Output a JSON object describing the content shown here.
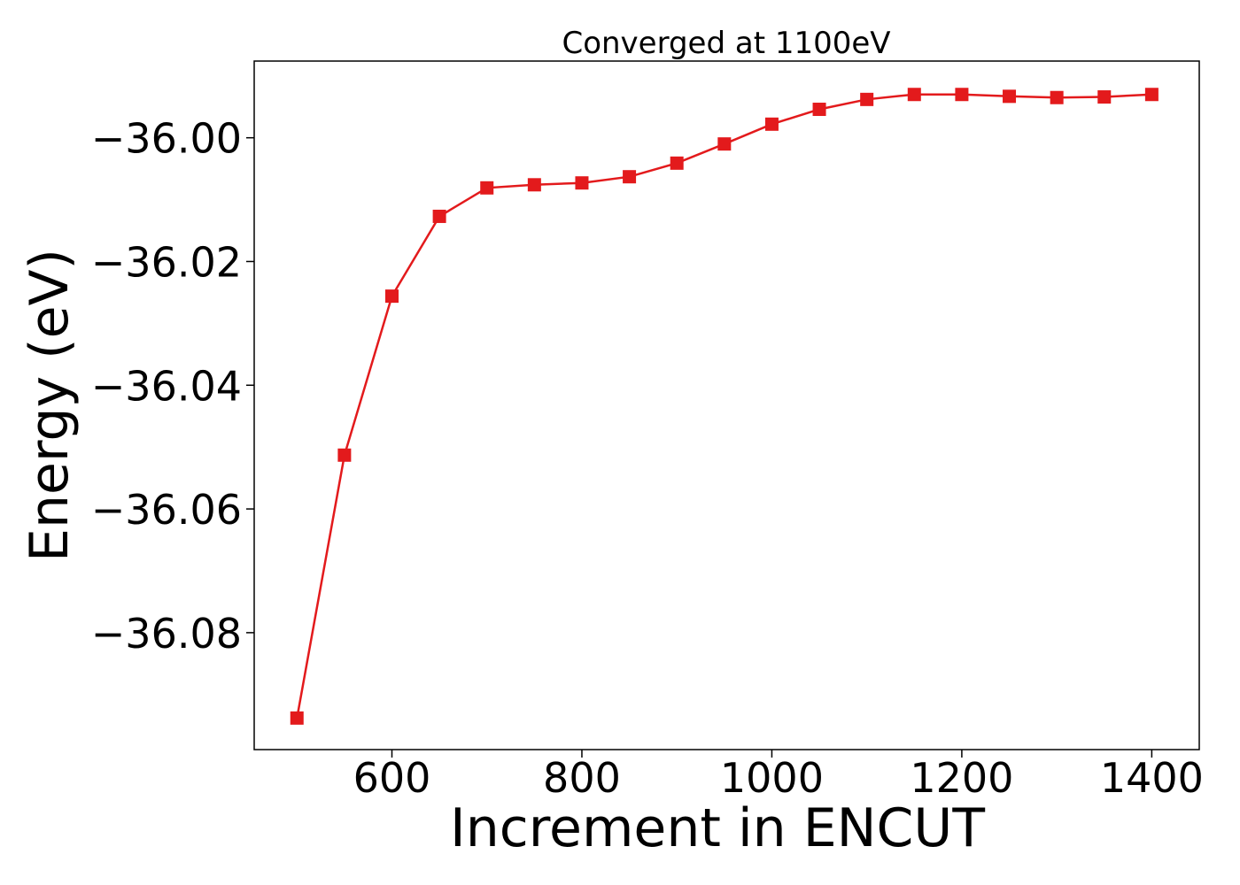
{
  "chart_data": {
    "type": "line",
    "title": "Converged at 1100eV",
    "xlabel": "Increment in ENCUT",
    "ylabel": "Energy (eV)",
    "xlim": [
      455,
      1450
    ],
    "ylim": [
      -36.0989,
      -35.9876
    ],
    "xticks": [
      600,
      800,
      1000,
      1200,
      1400
    ],
    "xtick_labels": [
      "600",
      "800",
      "1000",
      "1200",
      "1400"
    ],
    "yticks": [
      -36.0,
      -36.02,
      -36.04,
      -36.06,
      -36.08
    ],
    "ytick_labels": [
      "−36.00",
      "−36.02",
      "−36.04",
      "−36.06",
      "−36.08"
    ],
    "grid": false,
    "color": "#e31a1c",
    "marker": "square",
    "series": [
      {
        "x": [
          500,
          550,
          600,
          650,
          700,
          750,
          800,
          850,
          900,
          950,
          1000,
          1050,
          1100,
          1150,
          1200,
          1250,
          1300,
          1350,
          1400
        ],
        "y": [
          -36.0938,
          -36.0513,
          -36.0256,
          -36.0127,
          -36.0081,
          -36.0076,
          -36.0073,
          -36.0063,
          -36.0041,
          -36.001,
          -35.9978,
          -35.9954,
          -35.9938,
          -35.993,
          -35.993,
          -35.9933,
          -35.9935,
          -35.9934,
          -35.993
        ]
      }
    ]
  }
}
